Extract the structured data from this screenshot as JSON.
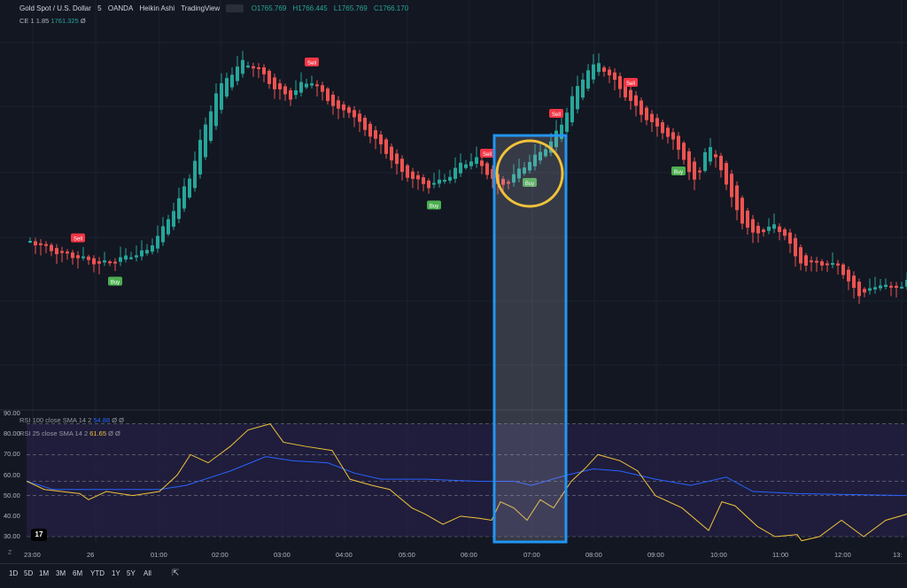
{
  "header": {
    "symbol_title": "Gold Spot / U.S. Dollar",
    "interval": "5",
    "broker": "OANDA",
    "chart_style": "Heikin Ashi",
    "source": "TradingView",
    "ohlc": {
      "open": "O1765.769",
      "high": "H1766.445",
      "low": "L1765.769",
      "close": "C1766.170"
    }
  },
  "overlay_indicator": {
    "label": "CE 1 1.85",
    "value": "1761.325",
    "suffix": "Ø"
  },
  "rsi_legends": [
    {
      "label": "RSI 100 close SMA 14 2",
      "value": "54.88",
      "suffix": "Ø Ø",
      "color": "#2962ff"
    },
    {
      "label": "RSI 25 close SMA 14 2",
      "value": "61.65",
      "suffix": "Ø Ø",
      "color": "#f0c23a"
    }
  ],
  "colors": {
    "bull": "#26a69a",
    "bear": "#ef5350",
    "buy_badge": "#4caf50",
    "sell_badge": "#f23645",
    "highlight_box": "#2196f3",
    "circle": "#f0c23a",
    "rsi_band": "#2a2350"
  },
  "time_axis": [
    "23:00",
    "26",
    "01:00",
    "02:00",
    "03:00",
    "04:00",
    "05:00",
    "06:00",
    "07:00",
    "08:00",
    "09:00",
    "10:00",
    "11:00",
    "12:00",
    "13:"
  ],
  "rsi_axis": [
    "90.00",
    "80.00",
    "70.00",
    "60.00",
    "50.00",
    "40.00",
    "30.00"
  ],
  "signals": [
    {
      "type": "Sell",
      "bar": 9
    },
    {
      "type": "Buy",
      "bar": 16
    },
    {
      "type": "Sell",
      "bar": 53
    },
    {
      "type": "Buy",
      "bar": 76
    },
    {
      "type": "Sell",
      "bar": 86
    },
    {
      "type": "Buy",
      "bar": 94
    },
    {
      "type": "Sell",
      "bar": 99
    },
    {
      "type": "Sell",
      "bar": 113
    },
    {
      "type": "Buy",
      "bar": 122
    }
  ],
  "toolbar": {
    "timeframes": [
      "1D",
      "5D",
      "1M",
      "3M",
      "6M",
      "YTD",
      "1Y",
      "5Y",
      "All"
    ]
  },
  "logo_text": "17",
  "zoom_glyph": "Z",
  "calendar_glyph": "⇱"
}
